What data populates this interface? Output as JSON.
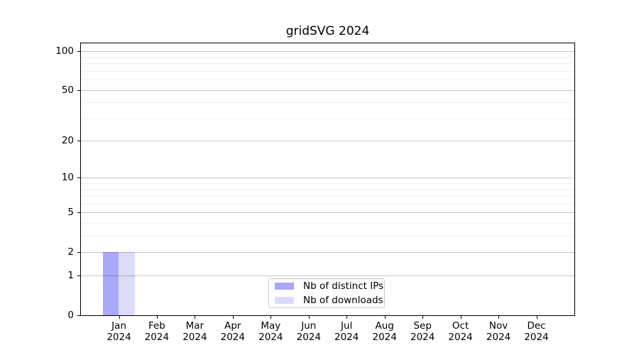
{
  "figure": {
    "background": "#ffffff",
    "spine_color": "#000000",
    "text_color": "#000000"
  },
  "chart_data": {
    "type": "bar",
    "title": "gridSVG 2024",
    "categories": [
      "Jan 2024",
      "Feb 2024",
      "Mar 2024",
      "Apr 2024",
      "May 2024",
      "Jun 2024",
      "Jul 2024",
      "Aug 2024",
      "Sep 2024",
      "Oct 2024",
      "Nov 2024",
      "Dec 2024"
    ],
    "x_tick_months": [
      "Jan",
      "Feb",
      "Mar",
      "Apr",
      "May",
      "Jun",
      "Jul",
      "Aug",
      "Sep",
      "Oct",
      "Nov",
      "Dec"
    ],
    "x_tick_year": "2024",
    "series": [
      {
        "name": "Nb of distinct IPs",
        "color": "#a9a9f7",
        "values": [
          2,
          0,
          0,
          0,
          0,
          0,
          0,
          0,
          0,
          0,
          0,
          0
        ]
      },
      {
        "name": "Nb of downloads",
        "color": "#dcdcf8",
        "values": [
          2,
          0,
          0,
          0,
          0,
          0,
          0,
          0,
          0,
          0,
          0,
          0
        ]
      }
    ],
    "y_axis": {
      "scale": "log1p",
      "min": 0,
      "max": 114,
      "major_ticks": [
        0,
        1,
        2,
        5,
        10,
        20,
        50,
        100
      ],
      "minor_ticks": [
        3,
        4,
        6,
        7,
        8,
        9,
        30,
        40,
        60,
        70,
        80,
        90
      ]
    },
    "grid": {
      "major_color": "rgba(0,0,0,0.22)",
      "minor_color": "rgba(0,0,0,0.06)"
    },
    "legend": {
      "position": "lower center",
      "entries": [
        "Nb of distinct IPs",
        "Nb of downloads"
      ]
    }
  }
}
